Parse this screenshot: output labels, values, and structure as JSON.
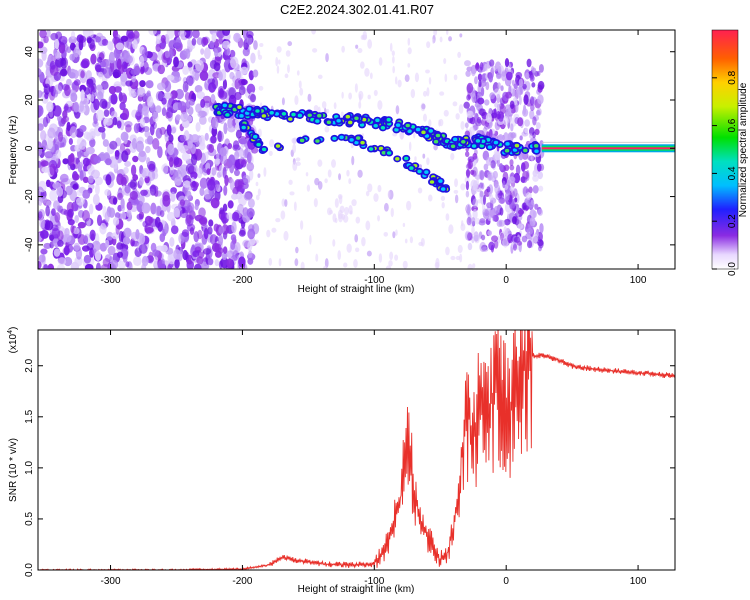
{
  "title": "C2E2.2024.302.01.41.R07",
  "chart_data": [
    {
      "type": "heatmap",
      "name": "spectrogram",
      "xlabel": "Height of straight line (km)",
      "ylabel": "Frequency (Hz)",
      "xlim": [
        -355,
        128
      ],
      "ylim": [
        -50,
        49
      ],
      "xticks": [
        -300,
        -200,
        -100,
        0,
        100
      ],
      "yticks": [
        -40,
        -20,
        0,
        20,
        40
      ],
      "colorbar": {
        "label": "Normalized spectral amplitude",
        "range": [
          0,
          1
        ],
        "ticks": [
          "0.0",
          "0.2",
          "0.4",
          "0.6",
          "0.8"
        ],
        "tick_values": [
          0,
          0.2,
          0.4,
          0.6,
          0.8
        ]
      },
      "signal_trace": {
        "description_points_km_hz": [
          [
            -220,
            16
          ],
          [
            -190,
            15
          ],
          [
            -160,
            13
          ],
          [
            -130,
            12
          ],
          [
            -100,
            11
          ],
          [
            -80,
            9
          ],
          [
            -60,
            6
          ],
          [
            -40,
            2
          ],
          [
            -20,
            3
          ],
          [
            0,
            0
          ],
          [
            25,
            0
          ]
        ],
        "secondary_branch_km_hz": [
          [
            -200,
            10
          ],
          [
            -185,
            0
          ],
          [
            -120,
            5
          ],
          [
            -80,
            -4
          ],
          [
            -55,
            -13
          ],
          [
            -45,
            -17
          ]
        ],
        "steady_tone_hz": 0,
        "steady_tone_from_km": 27
      },
      "noise_region_km": [
        -355,
        -190
      ],
      "noise_region2_km": [
        -30,
        27
      ]
    },
    {
      "type": "line",
      "name": "snr",
      "xlabel": "Height of straight line (km)",
      "ylabel": "SNR (10 * v/v)",
      "multiplier": "(x10",
      "multiplier_exp": "4",
      "xlim": [
        -355,
        128
      ],
      "ylim": [
        0,
        2.35
      ],
      "xticks": [
        -300,
        -200,
        -100,
        0,
        100
      ],
      "yticks": [
        "0.0",
        "0.5",
        "1.0",
        "1.5",
        "2.0"
      ],
      "ytick_values": [
        0,
        0.5,
        1.0,
        1.5,
        2.0
      ],
      "color": "#e8302a",
      "series": {
        "name": "SNR",
        "x": [
          -355,
          -300,
          -250,
          -200,
          -180,
          -170,
          -160,
          -140,
          -120,
          -100,
          -90,
          -80,
          -75,
          -70,
          -65,
          -60,
          -55,
          -50,
          -45,
          -40,
          -35,
          -30,
          -25,
          -20,
          -15,
          -10,
          -5,
          0,
          5,
          10,
          15,
          20,
          30,
          40,
          50,
          60,
          70,
          80,
          90,
          100,
          110,
          128
        ],
        "values": [
          0.0,
          0.0,
          0.0,
          0.01,
          0.05,
          0.12,
          0.1,
          0.06,
          0.05,
          0.06,
          0.25,
          0.7,
          1.3,
          0.8,
          0.5,
          0.35,
          0.2,
          0.1,
          0.15,
          0.4,
          0.9,
          1.6,
          1.3,
          1.6,
          1.4,
          1.7,
          1.8,
          1.5,
          1.6,
          1.9,
          2.05,
          2.1,
          2.1,
          2.05,
          2.0,
          1.98,
          1.96,
          1.95,
          1.94,
          1.93,
          1.92,
          1.9
        ]
      }
    }
  ]
}
